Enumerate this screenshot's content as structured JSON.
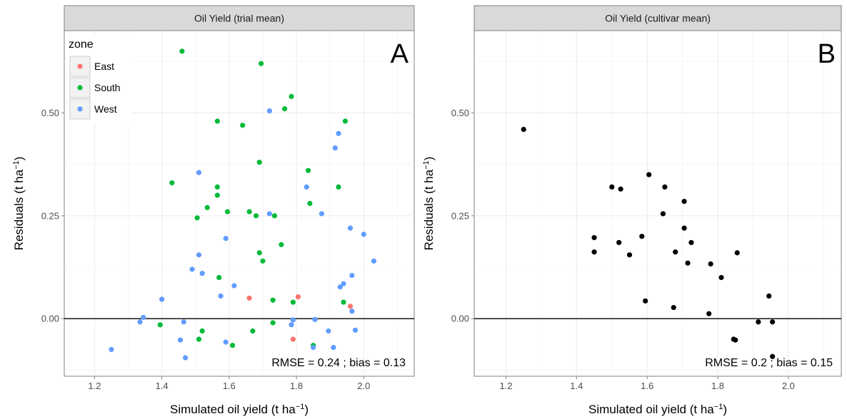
{
  "chart_data": [
    {
      "type": "scatter",
      "strip_title": "Oil Yield (trial mean)",
      "panel_letter": "A",
      "xlabel": "Simulated oil yield (t ha",
      "xlabel_sup": "−1",
      "xlabel_suffix": ")",
      "ylabel": "Residuals (t ha",
      "ylabel_sup": "−1",
      "ylabel_suffix": ")",
      "xlim": [
        1.11,
        2.15
      ],
      "ylim": [
        -0.14,
        0.7
      ],
      "x_ticks": [
        1.2,
        1.4,
        1.6,
        1.8,
        2.0
      ],
      "x_tick_labels": [
        "1.2",
        "1.4",
        "1.6",
        "1.8",
        "2.0"
      ],
      "y_ticks": [
        0.0,
        0.25,
        0.5
      ],
      "y_tick_labels": [
        "0.00",
        "0.25",
        "0.50"
      ],
      "hline": 0,
      "annotation": "RMSE = 0.24 ; bias = 0.13",
      "legend": {
        "title": "zone",
        "position": "top-left",
        "entries": [
          {
            "label": "East",
            "color": "#F8766D"
          },
          {
            "label": "South",
            "color": "#00BA38"
          },
          {
            "label": "West",
            "color": "#619CFF"
          }
        ]
      },
      "series": [
        {
          "name": "East",
          "color": "#F8766D",
          "points": [
            [
              1.66,
              0.05
            ],
            [
              1.805,
              0.053
            ],
            [
              1.79,
              -0.05
            ],
            [
              1.96,
              0.03
            ]
          ]
        },
        {
          "name": "South",
          "color": "#00BA38",
          "points": [
            [
              1.46,
              0.65
            ],
            [
              1.695,
              0.62
            ],
            [
              1.785,
              0.54
            ],
            [
              1.765,
              0.51
            ],
            [
              1.565,
              0.48
            ],
            [
              1.64,
              0.47
            ],
            [
              1.945,
              0.48
            ],
            [
              1.69,
              0.38
            ],
            [
              1.835,
              0.36
            ],
            [
              1.43,
              0.33
            ],
            [
              1.565,
              0.32
            ],
            [
              1.925,
              0.32
            ],
            [
              1.565,
              0.3
            ],
            [
              1.84,
              0.28
            ],
            [
              1.535,
              0.27
            ],
            [
              1.66,
              0.26
            ],
            [
              1.595,
              0.26
            ],
            [
              1.68,
              0.25
            ],
            [
              1.735,
              0.25
            ],
            [
              1.505,
              0.245
            ],
            [
              1.755,
              0.18
            ],
            [
              1.69,
              0.16
            ],
            [
              1.7,
              0.14
            ],
            [
              1.57,
              0.1
            ],
            [
              1.73,
              0.045
            ],
            [
              1.79,
              0.04
            ],
            [
              1.94,
              0.04
            ],
            [
              1.395,
              -0.015
            ],
            [
              1.73,
              -0.01
            ],
            [
              1.52,
              -0.03
            ],
            [
              1.67,
              -0.03
            ],
            [
              1.51,
              -0.05
            ],
            [
              1.85,
              -0.065
            ],
            [
              1.61,
              -0.065
            ]
          ]
        },
        {
          "name": "West",
          "color": "#619CFF",
          "points": [
            [
              1.72,
              0.505
            ],
            [
              1.925,
              0.45
            ],
            [
              1.915,
              0.415
            ],
            [
              1.51,
              0.355
            ],
            [
              1.83,
              0.32
            ],
            [
              1.875,
              0.255
            ],
            [
              1.72,
              0.255
            ],
            [
              1.96,
              0.22
            ],
            [
              2.0,
              0.205
            ],
            [
              1.59,
              0.195
            ],
            [
              1.51,
              0.155
            ],
            [
              2.03,
              0.14
            ],
            [
              1.49,
              0.12
            ],
            [
              1.52,
              0.11
            ],
            [
              1.965,
              0.105
            ],
            [
              1.94,
              0.085
            ],
            [
              1.93,
              0.077
            ],
            [
              1.615,
              0.08
            ],
            [
              1.575,
              0.055
            ],
            [
              1.4,
              0.047
            ],
            [
              1.965,
              0.018
            ],
            [
              1.345,
              0.003
            ],
            [
              1.335,
              -0.008
            ],
            [
              1.465,
              -0.008
            ],
            [
              1.79,
              -0.003
            ],
            [
              1.855,
              -0.002
            ],
            [
              1.785,
              -0.015
            ],
            [
              1.895,
              -0.03
            ],
            [
              1.975,
              -0.028
            ],
            [
              1.455,
              -0.052
            ],
            [
              1.59,
              -0.057
            ],
            [
              1.85,
              -0.07
            ],
            [
              1.91,
              -0.07
            ],
            [
              1.25,
              -0.075
            ],
            [
              1.47,
              -0.095
            ]
          ]
        }
      ]
    },
    {
      "type": "scatter",
      "strip_title": "Oil Yield (cultivar mean)",
      "panel_letter": "B",
      "xlabel": "Simulated oil yield (t ha",
      "xlabel_sup": "−1",
      "xlabel_suffix": ")",
      "ylabel": "Residuals (t ha",
      "ylabel_sup": "−1",
      "ylabel_suffix": ")",
      "xlim": [
        1.11,
        2.15
      ],
      "ylim": [
        -0.14,
        0.7
      ],
      "x_ticks": [
        1.2,
        1.4,
        1.6,
        1.8,
        2.0
      ],
      "x_tick_labels": [
        "1.2",
        "1.4",
        "1.6",
        "1.8",
        "2.0"
      ],
      "y_ticks": [
        0.0,
        0.25,
        0.5
      ],
      "y_tick_labels": [
        "0.00",
        "0.25",
        "0.50"
      ],
      "hline": 0,
      "annotation": "RMSE = 0.2 ; bias = 0.15",
      "series": [
        {
          "name": "",
          "color": "#000000",
          "points": [
            [
              1.25,
              0.46
            ],
            [
              1.605,
              0.35
            ],
            [
              1.5,
              0.32
            ],
            [
              1.65,
              0.32
            ],
            [
              1.525,
              0.315
            ],
            [
              1.705,
              0.285
            ],
            [
              1.645,
              0.255
            ],
            [
              1.705,
              0.22
            ],
            [
              1.45,
              0.197
            ],
            [
              1.585,
              0.2
            ],
            [
              1.52,
              0.185
            ],
            [
              1.725,
              0.185
            ],
            [
              1.45,
              0.162
            ],
            [
              1.68,
              0.162
            ],
            [
              1.55,
              0.155
            ],
            [
              1.855,
              0.16
            ],
            [
              1.715,
              0.135
            ],
            [
              1.78,
              0.133
            ],
            [
              1.81,
              0.1
            ],
            [
              1.945,
              0.055
            ],
            [
              1.595,
              0.043
            ],
            [
              1.675,
              0.027
            ],
            [
              1.775,
              0.012
            ],
            [
              1.915,
              -0.008
            ],
            [
              1.955,
              -0.008
            ],
            [
              1.845,
              -0.05
            ],
            [
              1.85,
              -0.052
            ],
            [
              1.955,
              -0.092
            ]
          ]
        }
      ]
    }
  ]
}
